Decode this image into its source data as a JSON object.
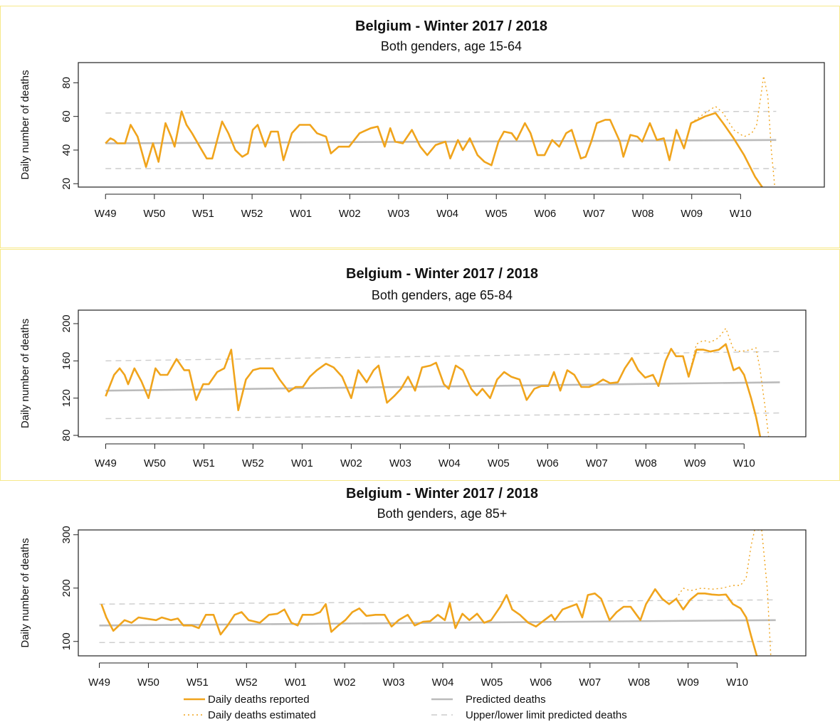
{
  "chart_data": [
    {
      "type": "line",
      "title": "Belgium - Winter 2017 / 2018",
      "subtitle": "Both genders, age 15-64",
      "y_label": "Daily number of deaths",
      "xlim": [
        -3.9,
        103
      ],
      "ylim": [
        18,
        92
      ],
      "xticks": [
        {
          "value": 0,
          "label": "W49"
        },
        {
          "value": 7,
          "label": "W50"
        },
        {
          "value": 14,
          "label": "W51"
        },
        {
          "value": 21,
          "label": "W52"
        },
        {
          "value": 28,
          "label": "W01"
        },
        {
          "value": 35,
          "label": "W02"
        },
        {
          "value": 42,
          "label": "W03"
        },
        {
          "value": 49,
          "label": "W04"
        },
        {
          "value": 56,
          "label": "W05"
        },
        {
          "value": 63,
          "label": "W06"
        },
        {
          "value": 70,
          "label": "W07"
        },
        {
          "value": 77,
          "label": "W08"
        },
        {
          "value": 84,
          "label": "W09"
        },
        {
          "value": 91,
          "label": "W10"
        }
      ],
      "yticks": [
        20,
        40,
        60,
        80
      ],
      "series": [
        {
          "name": "Daily deaths reported",
          "color": "#f0a41c",
          "style": "solid",
          "x": [
            0,
            0.7,
            1.2,
            1.7,
            2.8,
            3.6,
            4.6,
            5.8,
            6.8,
            7.6,
            8.6,
            9.4,
            9.9,
            10.9,
            11.6,
            12.4,
            13.5,
            14.5,
            15.3,
            16.7,
            17.6,
            18.6,
            19.6,
            20.4,
            21.1,
            21.8,
            22.9,
            23.7,
            24.7,
            25.5,
            26.7,
            27.8,
            29.3,
            30.3,
            31.6,
            32.3,
            33.4,
            34.9,
            36.4,
            38,
            39,
            40,
            40.8,
            41.5,
            42.6,
            43.9,
            45.1,
            46.1,
            47.3,
            48.7,
            49.4,
            50.5,
            51.2,
            52.2,
            53.3,
            54.3,
            55.3,
            56.3,
            57.1,
            58.2,
            58.9,
            60.1,
            60.9,
            61.9,
            62.9,
            64,
            65,
            66,
            66.8,
            68.1,
            68.8,
            69.6,
            70.4,
            71.6,
            72.3,
            73.7,
            74.2,
            75.2,
            76.2,
            76.9,
            78,
            79,
            80,
            80.8,
            81.8,
            82.9,
            83.9,
            84.9,
            85.9,
            87.4,
            88.5,
            90,
            91.5,
            93.1,
            94.1
          ],
          "values": [
            44,
            47,
            46,
            44,
            44,
            55,
            48,
            30,
            44,
            33,
            56,
            48,
            42,
            63,
            55,
            50,
            42,
            35,
            35,
            57,
            50,
            40,
            36,
            38,
            52,
            55,
            42,
            51,
            51,
            34,
            50,
            55,
            55,
            50,
            48,
            38,
            42,
            42,
            50,
            53,
            54,
            42,
            53,
            45,
            44,
            52,
            42,
            37,
            43,
            45,
            35,
            46,
            40,
            47,
            37,
            33,
            31,
            45,
            51,
            50,
            46,
            56,
            50,
            37,
            37,
            46,
            42,
            50,
            52,
            35,
            36,
            45,
            56,
            58,
            58,
            45,
            36,
            49,
            48,
            45,
            56,
            46,
            47,
            34,
            52,
            41,
            56,
            58,
            60,
            62,
            56,
            47,
            37,
            24,
            18
          ]
        },
        {
          "name": "Daily deaths estimated",
          "color": "#f0a41c",
          "style": "dotted",
          "x": [
            83.9,
            85.9,
            87.4,
            88.5,
            90,
            91.5,
            92.6,
            93.3,
            93.9,
            94.3,
            94.9,
            95.4,
            95.9
          ],
          "values": [
            56,
            62,
            66,
            62,
            52,
            48,
            50,
            55,
            72,
            84,
            72,
            40,
            18
          ]
        },
        {
          "name": "Predicted deaths",
          "color": "#bbbbbb",
          "style": "solid",
          "x": [
            0,
            96.1
          ],
          "values": [
            44,
            46
          ]
        },
        {
          "name": "Upper/lower limit predicted deaths",
          "color": "#cccccc",
          "style": "dashed",
          "x": [
            0,
            96.1
          ],
          "values": [
            62,
            63
          ],
          "lower_values": [
            29,
            29
          ]
        }
      ]
    },
    {
      "type": "line",
      "title": "Belgium - Winter 2017 / 2018",
      "subtitle": "Both genders, age 65-84",
      "y_label": "Daily number of deaths",
      "xlim": [
        -3.9,
        99.8
      ],
      "ylim": [
        78.5,
        214.5
      ],
      "xticks": [
        {
          "value": 0,
          "label": "W49"
        },
        {
          "value": 7,
          "label": "W50"
        },
        {
          "value": 14,
          "label": "W51"
        },
        {
          "value": 21,
          "label": "W52"
        },
        {
          "value": 28,
          "label": "W01"
        },
        {
          "value": 35,
          "label": "W02"
        },
        {
          "value": 42,
          "label": "W03"
        },
        {
          "value": 49,
          "label": "W04"
        },
        {
          "value": 56,
          "label": "W05"
        },
        {
          "value": 63,
          "label": "W06"
        },
        {
          "value": 70,
          "label": "W07"
        },
        {
          "value": 77,
          "label": "W08"
        },
        {
          "value": 84,
          "label": "W09"
        },
        {
          "value": 91,
          "label": "W10"
        }
      ],
      "yticks": [
        80,
        120,
        160,
        200
      ],
      "series": [
        {
          "name": "Daily deaths reported",
          "color": "#f0a41c",
          "style": "solid",
          "x": [
            0,
            1.2,
            2,
            2.7,
            3.2,
            4.1,
            5.1,
            6.1,
            7.1,
            7.8,
            8.8,
            10.1,
            11.2,
            11.9,
            12.9,
            13.9,
            14.7,
            15.9,
            16.9,
            17.9,
            18.9,
            20,
            21,
            22,
            23.8,
            24.8,
            26.1,
            27.1,
            28.1,
            29.1,
            30.1,
            31.4,
            32.5,
            33.7,
            35,
            36,
            37.2,
            38.2,
            38.9,
            40.1,
            41.1,
            42.1,
            43.1,
            44.1,
            45.1,
            46.3,
            47.1,
            48.2,
            48.9,
            49.9,
            50.9,
            52.1,
            52.9,
            53.7,
            54.8,
            55.8,
            56.8,
            57.8,
            59,
            60,
            61.1,
            62.1,
            63.1,
            63.9,
            64.8,
            65.8,
            66.8,
            67.8,
            68.9,
            69.9,
            70.9,
            71.9,
            73,
            74,
            75,
            75.9,
            76.9,
            78,
            78.8,
            79.8,
            80.6,
            81.3,
            82.3,
            83.1,
            84.2,
            85.2,
            86.2,
            87.4,
            88.4,
            89.5,
            90.3,
            91,
            92,
            92.7,
            93.3
          ],
          "values": [
            122,
            145,
            152,
            145,
            135,
            152,
            138,
            120,
            152,
            145,
            145,
            162,
            150,
            150,
            118,
            135,
            135,
            148,
            152,
            172,
            107,
            140,
            150,
            152,
            152,
            140,
            127,
            132,
            132,
            143,
            150,
            157,
            153,
            143,
            120,
            150,
            137,
            150,
            155,
            115,
            122,
            130,
            143,
            128,
            153,
            155,
            158,
            135,
            130,
            155,
            150,
            130,
            123,
            130,
            120,
            140,
            148,
            143,
            140,
            118,
            130,
            133,
            133,
            148,
            128,
            150,
            145,
            132,
            132,
            135,
            140,
            136,
            137,
            152,
            163,
            150,
            142,
            145,
            133,
            160,
            173,
            165,
            165,
            143,
            172,
            172,
            170,
            172,
            178,
            150,
            153,
            145,
            120,
            100,
            78.5
          ]
        },
        {
          "name": "Daily deaths estimated",
          "color": "#f0a41c",
          "style": "dotted",
          "x": [
            83.1,
            84.2,
            85.2,
            86.2,
            87.4,
            88.4,
            89.5,
            90.5,
            92,
            92.7,
            93.3,
            94,
            94.5
          ],
          "values": [
            143,
            178,
            182,
            180,
            185,
            195,
            172,
            170,
            172,
            174,
            150,
            110,
            78.5
          ]
        },
        {
          "name": "Predicted deaths",
          "color": "#bbbbbb",
          "style": "solid",
          "x": [
            0,
            96.1
          ],
          "values": [
            128,
            137
          ]
        },
        {
          "name": "Upper/lower limit predicted deaths",
          "color": "#cccccc",
          "style": "dashed",
          "x": [
            0,
            96.1
          ],
          "values": [
            160,
            170
          ],
          "lower_values": [
            98,
            104
          ]
        }
      ]
    },
    {
      "type": "line",
      "title": "Belgium - Winter 2017 / 2018",
      "subtitle": "Both genders, age 85+",
      "y_label": "Daily number of deaths",
      "xlim": [
        -3,
        100.8
      ],
      "ylim": [
        73,
        309
      ],
      "xticks": [
        {
          "value": 0,
          "label": "W49"
        },
        {
          "value": 7,
          "label": "W50"
        },
        {
          "value": 14,
          "label": "W51"
        },
        {
          "value": 21,
          "label": "W52"
        },
        {
          "value": 28,
          "label": "W01"
        },
        {
          "value": 35,
          "label": "W02"
        },
        {
          "value": 42,
          "label": "W03"
        },
        {
          "value": 49,
          "label": "W04"
        },
        {
          "value": 56,
          "label": "W05"
        },
        {
          "value": 63,
          "label": "W06"
        },
        {
          "value": 70,
          "label": "W07"
        },
        {
          "value": 77,
          "label": "W08"
        },
        {
          "value": 84,
          "label": "W09"
        },
        {
          "value": 91,
          "label": "W10"
        }
      ],
      "yticks": [
        100,
        200,
        300
      ],
      "series": [
        {
          "name": "Daily deaths reported",
          "color": "#f0a41c",
          "style": "solid",
          "x": [
            0.3,
            1,
            2,
            2.8,
            3.6,
            4.6,
            5.6,
            7.1,
            8.1,
            8.9,
            10.2,
            11.2,
            12,
            13.2,
            14.2,
            15.2,
            16.3,
            17.3,
            18.3,
            19.3,
            20.3,
            21.3,
            22.9,
            24.2,
            25.4,
            26.4,
            27.4,
            28.3,
            29,
            30.5,
            31.5,
            32.3,
            33.1,
            34.1,
            35.1,
            36.1,
            37.1,
            38.1,
            39.4,
            40.7,
            41.7,
            42.7,
            44,
            45,
            46.2,
            47.2,
            48.3,
            49.3,
            50,
            50.8,
            51.8,
            52.8,
            53.9,
            54.9,
            55.9,
            57.2,
            58.1,
            58.9,
            60,
            61.2,
            62.3,
            63.5,
            64.5,
            65,
            66.1,
            67.1,
            68.1,
            68.9,
            69.7,
            70.7,
            71.6,
            72.8,
            73.8,
            74.8,
            75.8,
            77.2,
            78,
            79.3,
            80.3,
            81.3,
            82.3,
            83.3,
            84.3,
            85.4,
            86.4,
            87.4,
            88.4,
            89.4,
            90.4,
            91.5,
            92.3,
            93,
            93.8
          ],
          "values": [
            170,
            145,
            120,
            130,
            140,
            135,
            145,
            142,
            140,
            145,
            140,
            143,
            130,
            130,
            125,
            150,
            150,
            113,
            130,
            150,
            155,
            140,
            135,
            150,
            152,
            160,
            135,
            130,
            150,
            150,
            155,
            170,
            118,
            130,
            140,
            155,
            162,
            148,
            150,
            150,
            128,
            140,
            150,
            130,
            137,
            138,
            150,
            140,
            172,
            125,
            152,
            140,
            152,
            135,
            140,
            165,
            187,
            160,
            150,
            135,
            128,
            140,
            150,
            140,
            160,
            165,
            170,
            145,
            187,
            190,
            180,
            140,
            155,
            165,
            165,
            140,
            170,
            198,
            180,
            170,
            180,
            160,
            178,
            190,
            190,
            188,
            187,
            188,
            170,
            162,
            145,
            110,
            73
          ]
        },
        {
          "name": "Daily deaths estimated",
          "color": "#f0a41c",
          "style": "dotted",
          "x": [
            82.3,
            83.3,
            84.3,
            85.9,
            87.4,
            88.9,
            90.4,
            91.5,
            92.3,
            93,
            93.5,
            94.5,
            95.3,
            95.8
          ],
          "values": [
            180,
            200,
            195,
            200,
            198,
            200,
            205,
            205,
            220,
            280,
            309,
            309,
            200,
            73
          ]
        },
        {
          "name": "Predicted deaths",
          "color": "#bbbbbb",
          "style": "solid",
          "x": [
            0,
            96.5
          ],
          "values": [
            130,
            140
          ]
        },
        {
          "name": "Upper/lower limit predicted deaths",
          "color": "#cccccc",
          "style": "dashed",
          "x": [
            0,
            96.5
          ],
          "values": [
            170,
            178
          ],
          "lower_values": [
            98,
            100
          ]
        }
      ]
    }
  ]
}
